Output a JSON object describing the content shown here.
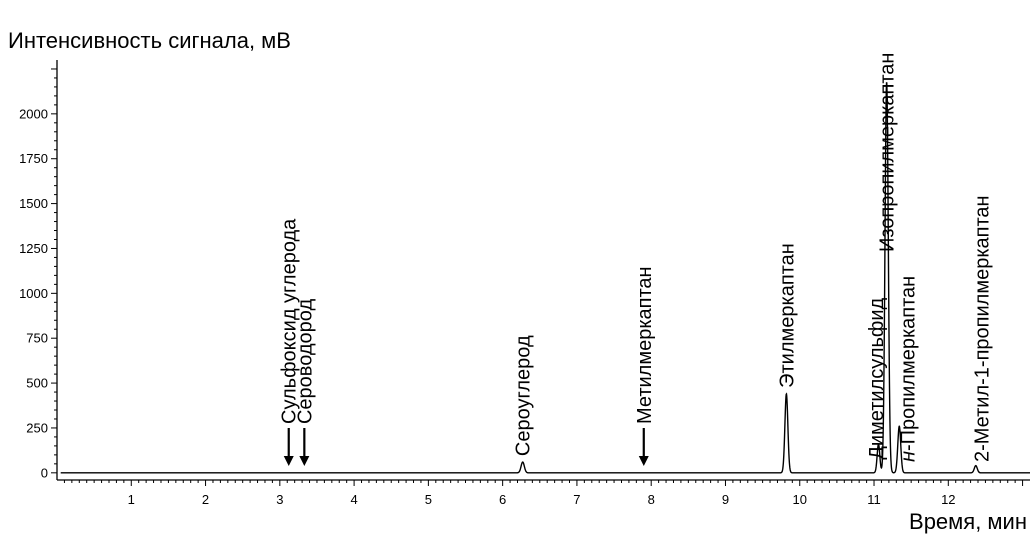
{
  "chart_data": {
    "type": "line",
    "title": "",
    "ylabel": "Интенсивность сигнала, мВ",
    "xlabel": "Время, мин",
    "xlim": [
      0,
      13.1
    ],
    "ylim": [
      -40,
      2300
    ],
    "x_ticks": [
      "1",
      "2",
      "3",
      "4",
      "5",
      "6",
      "7",
      "8",
      "9",
      "10",
      "11",
      "12"
    ],
    "y_ticks": [
      "0",
      "250",
      "500",
      "750",
      "1000",
      "1250",
      "1500",
      "1750",
      "2000"
    ],
    "grid": false,
    "series": [
      {
        "peaks": [
          {
            "x": 6.27,
            "y": 60,
            "width": 0.022
          },
          {
            "x": 9.82,
            "y": 440,
            "width": 0.02
          },
          {
            "x": 11.06,
            "y": 160,
            "width": 0.018
          },
          {
            "x": 11.17,
            "y": 2180,
            "width": 0.022
          },
          {
            "x": 11.34,
            "y": 260,
            "width": 0.02
          },
          {
            "x": 12.37,
            "y": 40,
            "width": 0.02
          }
        ]
      }
    ],
    "annotations": [
      {
        "label": "Сульфоксид углерода",
        "x": 3.12,
        "arrow": true
      },
      {
        "label": "Сероводород",
        "x": 3.33,
        "arrow": true
      },
      {
        "label": "Сероуглерод",
        "x": 6.27,
        "arrow": false
      },
      {
        "label": "Метилмеркаптан",
        "x": 7.9,
        "arrow": true
      },
      {
        "label": "Этилмеркаптан",
        "x": 9.82,
        "arrow": false
      },
      {
        "label": "Диметилсульфид",
        "x": 11.03,
        "arrow": false
      },
      {
        "label": "Изопропилмеркаптан",
        "x": 11.17,
        "arrow": false
      },
      {
        "label_prefix": "н",
        "label": "-Пропилмеркаптан",
        "x": 11.45,
        "arrow": false
      },
      {
        "label": "2-Метил-1-пропилмеркаптан",
        "x": 12.45,
        "arrow": false
      }
    ]
  }
}
